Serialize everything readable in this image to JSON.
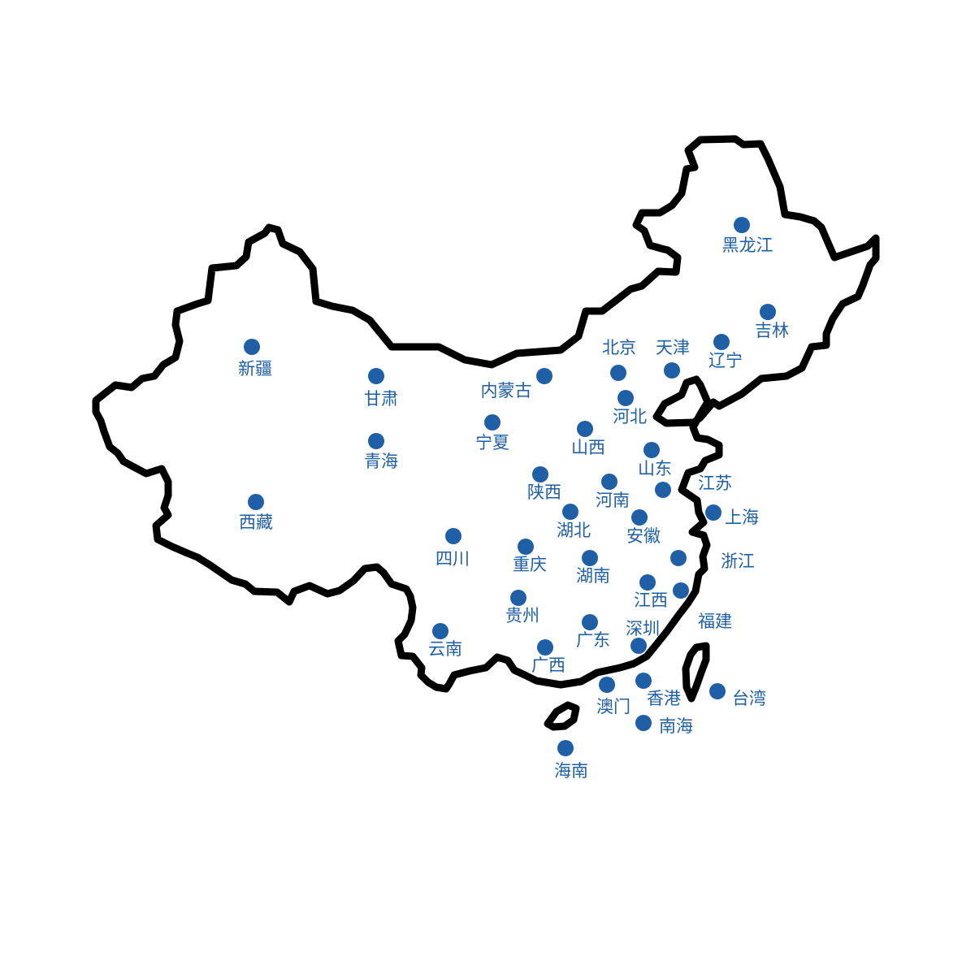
{
  "map": {
    "dot_color": "#1f5fa6",
    "label_color": "#1f5fa6",
    "outline_color": "#000000",
    "regions": [
      {
        "id": "heilongjiang",
        "label": "黑龙江"
      },
      {
        "id": "jilin",
        "label": "吉林"
      },
      {
        "id": "liaoning",
        "label": "辽宁"
      },
      {
        "id": "beijing",
        "label": "北京"
      },
      {
        "id": "tianjin",
        "label": "天津"
      },
      {
        "id": "hebei",
        "label": "河北"
      },
      {
        "id": "neimenggu",
        "label": "内蒙古"
      },
      {
        "id": "xinjiang",
        "label": "新疆"
      },
      {
        "id": "gansu",
        "label": "甘肃"
      },
      {
        "id": "qinghai",
        "label": "青海"
      },
      {
        "id": "ningxia",
        "label": "宁夏"
      },
      {
        "id": "shanxi",
        "label": "山西"
      },
      {
        "id": "shandong",
        "label": "山东"
      },
      {
        "id": "jiangsu",
        "label": "江苏"
      },
      {
        "id": "shaanxi",
        "label": "陕西"
      },
      {
        "id": "henan",
        "label": "河南"
      },
      {
        "id": "shanghai",
        "label": "上海"
      },
      {
        "id": "xizang",
        "label": "西藏"
      },
      {
        "id": "hubei",
        "label": "湖北"
      },
      {
        "id": "anhui",
        "label": "安徽"
      },
      {
        "id": "sichuan",
        "label": "四川"
      },
      {
        "id": "chongqing",
        "label": "重庆"
      },
      {
        "id": "hunan",
        "label": "湖南"
      },
      {
        "id": "zhejiang",
        "label": "浙江"
      },
      {
        "id": "jiangxi",
        "label": "江西"
      },
      {
        "id": "fujian",
        "label": "福建"
      },
      {
        "id": "guizhou",
        "label": "贵州"
      },
      {
        "id": "guangdong",
        "label": "广东"
      },
      {
        "id": "shenzhen",
        "label": "深圳"
      },
      {
        "id": "yunnan",
        "label": "云南"
      },
      {
        "id": "guangxi",
        "label": "广西"
      },
      {
        "id": "aomen",
        "label": "澳门"
      },
      {
        "id": "xianggang",
        "label": "香港"
      },
      {
        "id": "taiwan",
        "label": "台湾"
      },
      {
        "id": "nanhai",
        "label": "南海"
      },
      {
        "id": "hainan",
        "label": "海南"
      }
    ]
  }
}
